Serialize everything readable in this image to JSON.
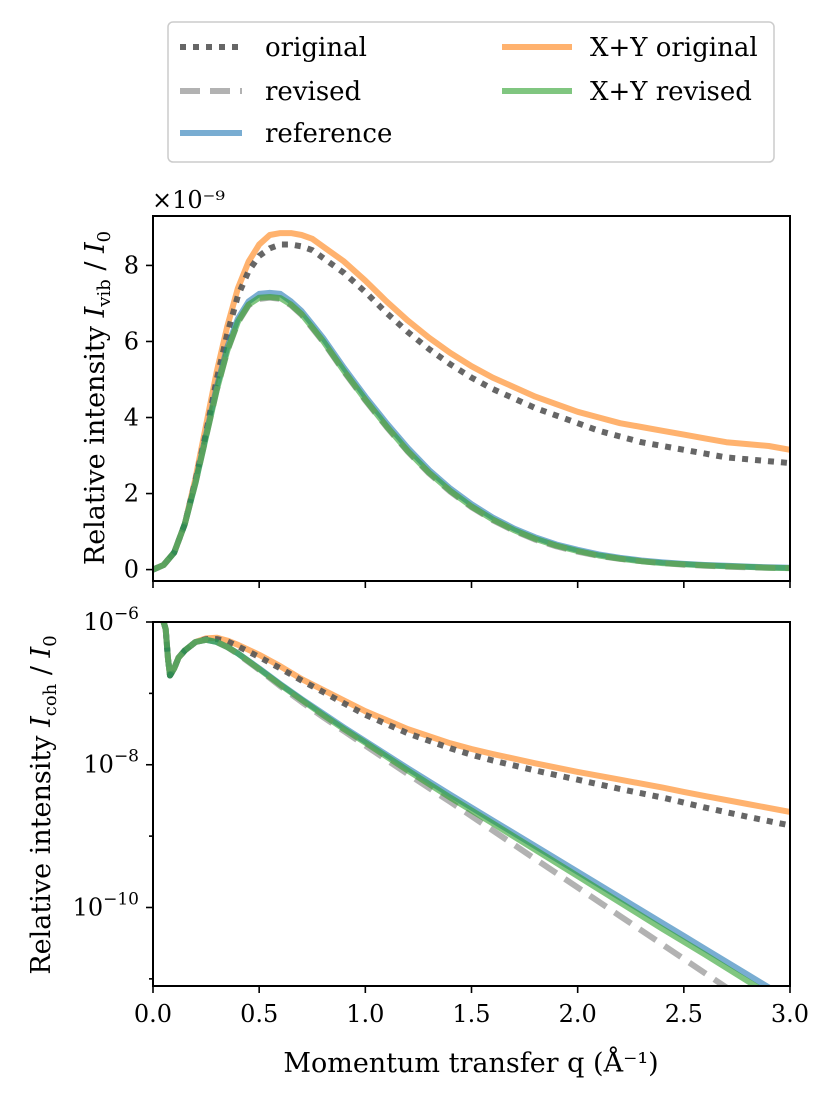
{
  "legend": {
    "items": [
      {
        "key": "original",
        "label": "original"
      },
      {
        "key": "revised",
        "label": "revised"
      },
      {
        "key": "reference",
        "label": "reference"
      },
      {
        "key": "xy_original",
        "label": "X+Y original"
      },
      {
        "key": "xy_revised",
        "label": "X+Y revised"
      }
    ]
  },
  "styles": {
    "original": {
      "color": "#555555",
      "dash": "dotted",
      "alpha": 0.9
    },
    "revised": {
      "color": "#aaaaaa",
      "dash": "dashed",
      "alpha": 0.9
    },
    "reference": {
      "color": "#1f77b4",
      "dash": "solid",
      "alpha": 0.6
    },
    "xy_original": {
      "color": "#ff7f0e",
      "dash": "solid",
      "alpha": 0.6
    },
    "xy_revised": {
      "color": "#2ca02c",
      "dash": "solid",
      "alpha": 0.6
    }
  },
  "shared": {
    "xlabel": "Momentum transfer q (Å⁻¹)",
    "xlim": [
      0,
      3
    ],
    "xticks": [
      0.0,
      0.5,
      1.0,
      1.5,
      2.0,
      2.5,
      3.0
    ],
    "xtick_labels": [
      "0.0",
      "0.5",
      "1.0",
      "1.5",
      "2.0",
      "2.5",
      "3.0"
    ]
  },
  "chart_data": [
    {
      "type": "line",
      "panel": "top",
      "ylabel": "Relative intensity I_vib / I_0",
      "ylabel_main": "Relative intensity ",
      "ylabel_sym": "I",
      "ylabel_sub": "vib",
      "ylabel_sep": " / ",
      "ylabel_sym2": "I",
      "ylabel_sub2": "0",
      "scale": "linear",
      "offset_text": "×10⁻⁹",
      "ylim": [
        -0.3,
        9.3
      ],
      "yticks": [
        0,
        2,
        4,
        6,
        8
      ],
      "ytick_labels": [
        "0",
        "2",
        "4",
        "6",
        "8"
      ],
      "x": [
        0.0,
        0.05,
        0.1,
        0.15,
        0.2,
        0.25,
        0.3,
        0.35,
        0.4,
        0.45,
        0.5,
        0.55,
        0.6,
        0.65,
        0.7,
        0.75,
        0.8,
        0.9,
        1.0,
        1.1,
        1.2,
        1.3,
        1.4,
        1.5,
        1.6,
        1.7,
        1.8,
        1.9,
        2.0,
        2.1,
        2.2,
        2.3,
        2.4,
        2.5,
        2.6,
        2.7,
        2.8,
        2.9,
        3.0
      ],
      "series": [
        {
          "key": "xy_original",
          "values": [
            0.0,
            0.12,
            0.45,
            1.2,
            2.4,
            3.8,
            5.2,
            6.4,
            7.4,
            8.1,
            8.55,
            8.8,
            8.85,
            8.85,
            8.8,
            8.7,
            8.5,
            8.1,
            7.6,
            7.05,
            6.55,
            6.1,
            5.7,
            5.35,
            5.05,
            4.8,
            4.55,
            4.35,
            4.15,
            4.0,
            3.85,
            3.75,
            3.65,
            3.55,
            3.45,
            3.35,
            3.3,
            3.25,
            3.15
          ]
        },
        {
          "key": "original",
          "values": [
            0.0,
            0.12,
            0.45,
            1.2,
            2.35,
            3.6,
            5.0,
            6.2,
            7.2,
            7.85,
            8.25,
            8.45,
            8.55,
            8.55,
            8.5,
            8.4,
            8.2,
            7.8,
            7.3,
            6.75,
            6.25,
            5.8,
            5.4,
            5.05,
            4.75,
            4.5,
            4.25,
            4.05,
            3.85,
            3.65,
            3.5,
            3.35,
            3.25,
            3.15,
            3.05,
            2.95,
            2.9,
            2.85,
            2.8
          ]
        },
        {
          "key": "reference",
          "values": [
            0.0,
            0.12,
            0.45,
            1.2,
            2.3,
            3.55,
            4.8,
            5.85,
            6.6,
            7.05,
            7.25,
            7.28,
            7.25,
            7.05,
            6.8,
            6.45,
            6.1,
            5.3,
            4.55,
            3.85,
            3.2,
            2.62,
            2.13,
            1.72,
            1.37,
            1.08,
            0.85,
            0.66,
            0.52,
            0.4,
            0.31,
            0.24,
            0.19,
            0.15,
            0.12,
            0.1,
            0.08,
            0.06,
            0.05
          ]
        },
        {
          "key": "revised",
          "values": [
            0.0,
            0.12,
            0.45,
            1.2,
            2.28,
            3.5,
            4.72,
            5.75,
            6.5,
            6.95,
            7.12,
            7.15,
            7.12,
            6.95,
            6.7,
            6.35,
            6.0,
            5.2,
            4.45,
            3.75,
            3.1,
            2.53,
            2.05,
            1.64,
            1.3,
            1.02,
            0.79,
            0.61,
            0.47,
            0.36,
            0.28,
            0.22,
            0.17,
            0.13,
            0.1,
            0.08,
            0.06,
            0.05,
            0.04
          ]
        },
        {
          "key": "xy_revised",
          "values": [
            0.0,
            0.12,
            0.45,
            1.2,
            2.28,
            3.5,
            4.72,
            5.76,
            6.52,
            6.97,
            7.15,
            7.17,
            7.14,
            6.97,
            6.72,
            6.37,
            6.02,
            5.22,
            4.47,
            3.77,
            3.12,
            2.55,
            2.07,
            1.66,
            1.32,
            1.04,
            0.81,
            0.63,
            0.49,
            0.37,
            0.29,
            0.22,
            0.17,
            0.14,
            0.11,
            0.09,
            0.07,
            0.05,
            0.04
          ]
        }
      ]
    },
    {
      "type": "line",
      "panel": "bottom",
      "ylabel": "Relative intensity I_coh / I_0",
      "ylabel_main": "Relative intensity ",
      "ylabel_sym": "I",
      "ylabel_sub": "coh",
      "ylabel_sep": " / ",
      "ylabel_sym2": "I",
      "ylabel_sub2": "0",
      "scale": "log",
      "ylim_exp": [
        -11.1,
        -6.0
      ],
      "yticks_exp": [
        -6,
        -8,
        -10
      ],
      "ytick_labels": [
        {
          "base": "10",
          "exp": "−6"
        },
        {
          "base": "10",
          "exp": "−8"
        },
        {
          "base": "10",
          "exp": "−10"
        }
      ],
      "x": [
        0.05,
        0.06,
        0.07,
        0.08,
        0.1,
        0.12,
        0.15,
        0.2,
        0.25,
        0.3,
        0.35,
        0.4,
        0.5,
        0.6,
        0.7,
        0.8,
        0.9,
        1.0,
        1.2,
        1.4,
        1.5,
        1.6,
        1.8,
        2.0,
        2.2,
        2.4,
        2.5,
        2.6,
        2.8,
        3.0
      ],
      "series": [
        {
          "key": "xy_original",
          "exp": [
            -6.0,
            -6.1,
            -6.5,
            -6.75,
            -6.65,
            -6.5,
            -6.4,
            -6.28,
            -6.23,
            -6.22,
            -6.26,
            -6.32,
            -6.46,
            -6.62,
            -6.8,
            -6.95,
            -7.1,
            -7.25,
            -7.5,
            -7.7,
            -7.78,
            -7.85,
            -7.98,
            -8.1,
            -8.21,
            -8.32,
            -8.38,
            -8.44,
            -8.55,
            -8.66
          ]
        },
        {
          "key": "original",
          "exp": [
            -6.0,
            -6.1,
            -6.5,
            -6.75,
            -6.65,
            -6.5,
            -6.4,
            -6.28,
            -6.24,
            -6.24,
            -6.27,
            -6.34,
            -6.49,
            -6.65,
            -6.82,
            -6.98,
            -7.14,
            -7.3,
            -7.56,
            -7.77,
            -7.86,
            -7.94,
            -8.08,
            -8.21,
            -8.34,
            -8.46,
            -8.53,
            -8.6,
            -8.73,
            -8.85
          ]
        },
        {
          "key": "reference",
          "exp": [
            -6.0,
            -6.1,
            -6.5,
            -6.75,
            -6.65,
            -6.5,
            -6.4,
            -6.28,
            -6.25,
            -6.28,
            -6.35,
            -6.44,
            -6.65,
            -6.87,
            -7.08,
            -7.28,
            -7.48,
            -7.67,
            -8.05,
            -8.42,
            -8.6,
            -8.78,
            -9.14,
            -9.5,
            -9.86,
            -10.22,
            -10.4,
            -10.58,
            -10.94,
            -11.3
          ]
        },
        {
          "key": "revised",
          "exp": [
            -6.0,
            -6.1,
            -6.5,
            -6.75,
            -6.65,
            -6.5,
            -6.4,
            -6.28,
            -6.25,
            -6.28,
            -6.35,
            -6.45,
            -6.67,
            -6.9,
            -7.12,
            -7.33,
            -7.53,
            -7.73,
            -8.13,
            -8.52,
            -8.72,
            -8.92,
            -9.32,
            -9.72,
            -10.12,
            -10.52,
            -10.72,
            -10.92,
            -11.32,
            -11.72
          ]
        },
        {
          "key": "xy_revised",
          "exp": [
            -6.0,
            -6.1,
            -6.5,
            -6.75,
            -6.65,
            -6.5,
            -6.4,
            -6.28,
            -6.25,
            -6.28,
            -6.35,
            -6.44,
            -6.66,
            -6.88,
            -7.09,
            -7.3,
            -7.5,
            -7.69,
            -8.08,
            -8.46,
            -8.64,
            -8.82,
            -9.19,
            -9.56,
            -9.93,
            -10.3,
            -10.48,
            -10.66,
            -11.03,
            -11.4
          ]
        }
      ]
    }
  ]
}
